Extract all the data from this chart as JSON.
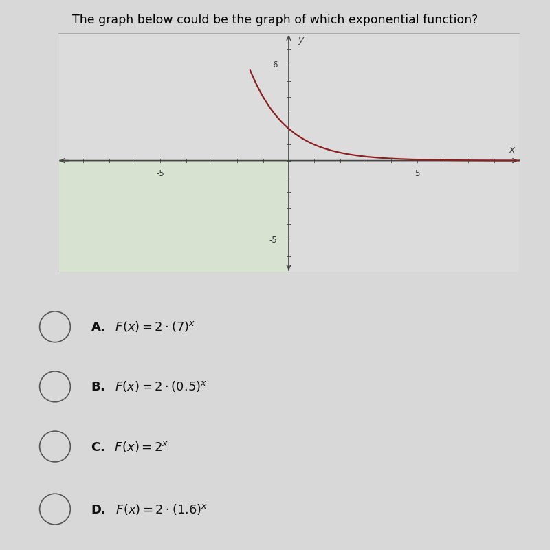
{
  "title": "The graph below could be the graph of which exponential function?",
  "title_fontsize": 12.5,
  "graph_xlim": [
    -9,
    9
  ],
  "graph_ylim": [
    -7,
    8
  ],
  "x_tick_label_neg": -5,
  "x_tick_label_pos": 5,
  "y_tick_label_pos": 6,
  "y_tick_label_neg": -5,
  "curve_color": "#8B2020",
  "curve_linewidth": 1.6,
  "func_base": 0.5,
  "func_coeff": 2,
  "bg_color": "#d8d8d8",
  "graph_bg_color": "#dcdcdc",
  "lower_bg_color": "#d8d8d8",
  "green_tint_color": "#d4e8c8",
  "green_tint_alpha": 0.5,
  "axis_color": "#444444",
  "tick_color": "#555555",
  "border_color": "#aaaaaa",
  "separator_color": "#aaaaaa",
  "choice_circle_color": "#555555",
  "choice_text_color": "#111111",
  "choice_fontsize": 13,
  "choice_labels": [
    "A.",
    "B.",
    "C.",
    "D."
  ],
  "choice_formulas": [
    "F(x) = 2 \\cdot (7)^x",
    "F(x) = 2 \\cdot (0.5)^x",
    "F(x) = 2^x",
    "F(x) = 2 \\cdot (1.6)^x"
  ]
}
